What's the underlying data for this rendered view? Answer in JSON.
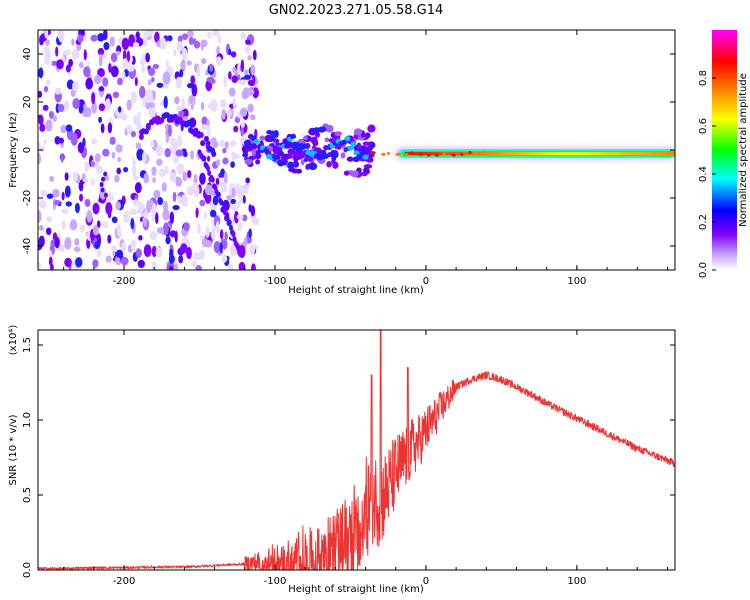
{
  "figure": {
    "title": "GN02.2023.271.05.58.G14"
  },
  "chart_data": [
    {
      "type": "heatmap",
      "name": "spectrogram",
      "xlabel": "Height of straight line (km)",
      "ylabel": "Frequency (Hz)",
      "xlim": [
        -257,
        165
      ],
      "ylim": [
        -50,
        50
      ],
      "xticks": [
        -200,
        -100,
        0,
        100
      ],
      "xtick_labels": [
        "-200",
        "-100",
        "0",
        "100"
      ],
      "yticks": [
        -40,
        -20,
        0,
        20,
        40
      ],
      "ytick_labels": [
        "-40",
        "-20",
        "0",
        "20",
        "40"
      ],
      "colorbar": {
        "label": "Normalized spectral amplitude",
        "range": [
          0.0,
          1.0
        ],
        "ticks": [
          0.0,
          0.2,
          0.4,
          0.6,
          0.8
        ],
        "tick_labels": [
          "0.0",
          "0.2",
          "0.4",
          "0.6",
          "0.8"
        ],
        "colors": [
          "#ffffff",
          "#c8a8ff",
          "#8000ff",
          "#0000ff",
          "#00ffff",
          "#00ff00",
          "#ffff00",
          "#ff8000",
          "#ff0000",
          "#ff00ff"
        ]
      },
      "features": [
        {
          "name": "strong-center-line",
          "x_range": [
            -10,
            165
          ],
          "frequency": -1.5,
          "amplitude": 0.55
        },
        {
          "name": "noisy-arc",
          "x_range": [
            -190,
            -140
          ],
          "frequency_peak": 15,
          "amplitude": 0.45
        },
        {
          "name": "descending-branch",
          "x_range": [
            -150,
            -125
          ],
          "frequency_range": [
            0,
            -40
          ],
          "amplitude": 0.4
        },
        {
          "name": "transition-cluster",
          "x_range": [
            -120,
            -35
          ],
          "frequency_range": [
            -12,
            10
          ],
          "amplitude": 0.5
        }
      ]
    },
    {
      "type": "line",
      "name": "snr",
      "xlabel": "Height of straight line (km)",
      "ylabel": "SNR (10 * v/v)",
      "y_multiplier": "(x10⁴)",
      "xlim": [
        -257,
        165
      ],
      "ylim": [
        0.0,
        1.6
      ],
      "xticks": [
        -200,
        -100,
        0,
        100
      ],
      "xtick_labels": [
        "-200",
        "-100",
        "0",
        "100"
      ],
      "yticks": [
        0.0,
        0.5,
        1.0,
        1.5
      ],
      "ytick_labels": [
        "0.0",
        "0.5",
        "1.0",
        "1.5"
      ],
      "color": "#ee3333",
      "series": [
        {
          "name": "SNR",
          "x": [
            -257,
            -240,
            -220,
            -200,
            -180,
            -160,
            -140,
            -120,
            -110,
            -100,
            -90,
            -80,
            -70,
            -60,
            -50,
            -40,
            -35,
            -30,
            -25,
            -20,
            -15,
            -10,
            -5,
            0,
            5,
            10,
            15,
            20,
            30,
            40,
            50,
            60,
            70,
            80,
            90,
            100,
            110,
            120,
            130,
            140,
            150,
            165
          ],
          "values": [
            0.01,
            0.01,
            0.015,
            0.015,
            0.02,
            0.02,
            0.03,
            0.04,
            0.05,
            0.07,
            0.1,
            0.14,
            0.18,
            0.24,
            0.3,
            0.4,
            0.5,
            0.45,
            0.55,
            0.65,
            0.72,
            0.8,
            0.85,
            0.93,
            1.0,
            1.08,
            1.15,
            1.22,
            1.27,
            1.3,
            1.27,
            1.22,
            1.17,
            1.11,
            1.06,
            1.01,
            0.96,
            0.91,
            0.86,
            0.81,
            0.77,
            0.71
          ]
        }
      ],
      "peaks": [
        {
          "x": -30,
          "value": 1.6
        },
        {
          "x": -36,
          "value": 1.3
        },
        {
          "x": -12,
          "value": 1.35
        }
      ]
    }
  ]
}
